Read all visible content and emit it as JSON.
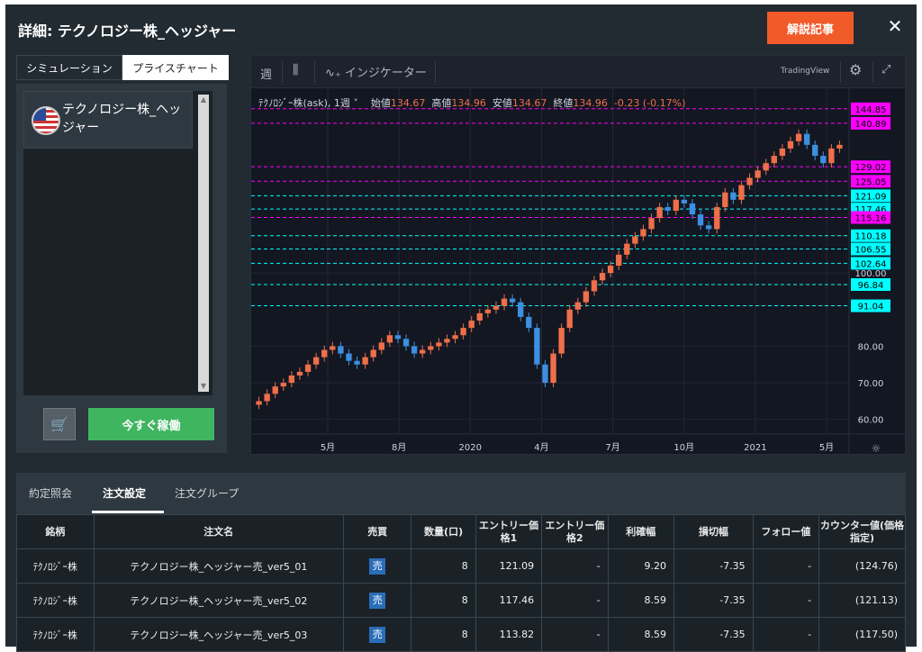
{
  "header": {
    "title": "詳細: テクノロジー株_ヘッジャー",
    "article_button": "解説記事",
    "close_icon": "✕"
  },
  "left": {
    "tabs": [
      "シミュレーション",
      "プライスチャート"
    ],
    "item_label": "テクノロジー株_ヘッジャー",
    "cart_icon": "🛒",
    "run_button": "今すぐ稼働"
  },
  "toolbar": {
    "interval": "週",
    "indicator": "インジケーター",
    "brand": "TradingView"
  },
  "legend": {
    "symbol": "ﾃｸﾉﾛｼﾞｰ株(ask), 1週 ˅",
    "open_label": "始値",
    "open": "134.67",
    "high_label": "高値",
    "high": "134.96",
    "low_label": "安値",
    "low": "134.67",
    "close_label": "終値",
    "close": "134.96",
    "change": "-0.23 (-0.17%)"
  },
  "chart_data": {
    "type": "candlestick",
    "yaxis_ticks": [
      60,
      70,
      80,
      100
    ],
    "x_tick_labels": [
      "5月",
      "8月",
      "2020",
      "4月",
      "7月",
      "10月",
      "2021",
      "5月"
    ],
    "price_lines": [
      {
        "value": "144.85",
        "color": "#ff00ff"
      },
      {
        "value": "140.89",
        "color": "#ff00ff"
      },
      {
        "value": "129.02",
        "color": "#ff00ff"
      },
      {
        "value": "125.05",
        "color": "#ff00ff"
      },
      {
        "value": "121.09",
        "color": "#00ffff"
      },
      {
        "value": "117.46",
        "color": "#00ffff"
      },
      {
        "value": "115.16",
        "color": "#ff00ff"
      },
      {
        "value": "110.18",
        "color": "#00ffff"
      },
      {
        "value": "106.55",
        "color": "#00ffff"
      },
      {
        "value": "102.64",
        "color": "#00ffff"
      },
      {
        "value": "96.84",
        "color": "#00ffff"
      },
      {
        "value": "91.04",
        "color": "#00ffff"
      }
    ],
    "close_series": [
      65,
      67,
      69,
      70,
      72,
      73,
      75,
      77,
      79,
      80,
      78,
      76,
      75,
      77,
      79,
      81,
      83,
      82,
      80,
      78,
      79,
      80,
      81,
      82,
      83,
      85,
      87,
      89,
      90,
      91,
      93,
      92,
      88,
      85,
      75,
      70,
      78,
      85,
      90,
      92,
      95,
      98,
      100,
      102,
      105,
      108,
      110,
      112,
      115,
      118,
      117,
      120,
      119,
      116,
      113,
      112,
      118,
      122,
      120,
      124,
      126,
      128,
      130,
      132,
      134,
      136,
      138,
      135,
      132,
      130,
      134,
      135
    ]
  },
  "bottom_tabs": [
    "約定照会",
    "注文設定",
    "注文グループ"
  ],
  "table": {
    "headers": [
      "銘柄",
      "注文名",
      "売買",
      "数量(口)",
      "エントリー価格1",
      "エントリー価格2",
      "利確幅",
      "損切幅",
      "フォロー値",
      "カウンター値(価格指定)"
    ],
    "rows": [
      {
        "symbol": "ﾃｸﾉﾛｼﾞｰ株",
        "name": "テクノロジー株_ヘッジャー売_ver5_01",
        "side": "売",
        "qty": "8",
        "entry1": "121.09",
        "entry2": "-",
        "tp": "9.20",
        "sl": "-7.35",
        "follow": "-",
        "counter": "(124.76)"
      },
      {
        "symbol": "ﾃｸﾉﾛｼﾞｰ株",
        "name": "テクノロジー株_ヘッジャー売_ver5_02",
        "side": "売",
        "qty": "8",
        "entry1": "117.46",
        "entry2": "-",
        "tp": "8.59",
        "sl": "-7.35",
        "follow": "-",
        "counter": "(121.13)"
      },
      {
        "symbol": "ﾃｸﾉﾛｼﾞｰ株",
        "name": "テクノロジー株_ヘッジャー売_ver5_03",
        "side": "売",
        "qty": "8",
        "entry1": "113.82",
        "entry2": "-",
        "tp": "8.59",
        "sl": "-7.35",
        "follow": "-",
        "counter": "(117.50)"
      }
    ]
  }
}
